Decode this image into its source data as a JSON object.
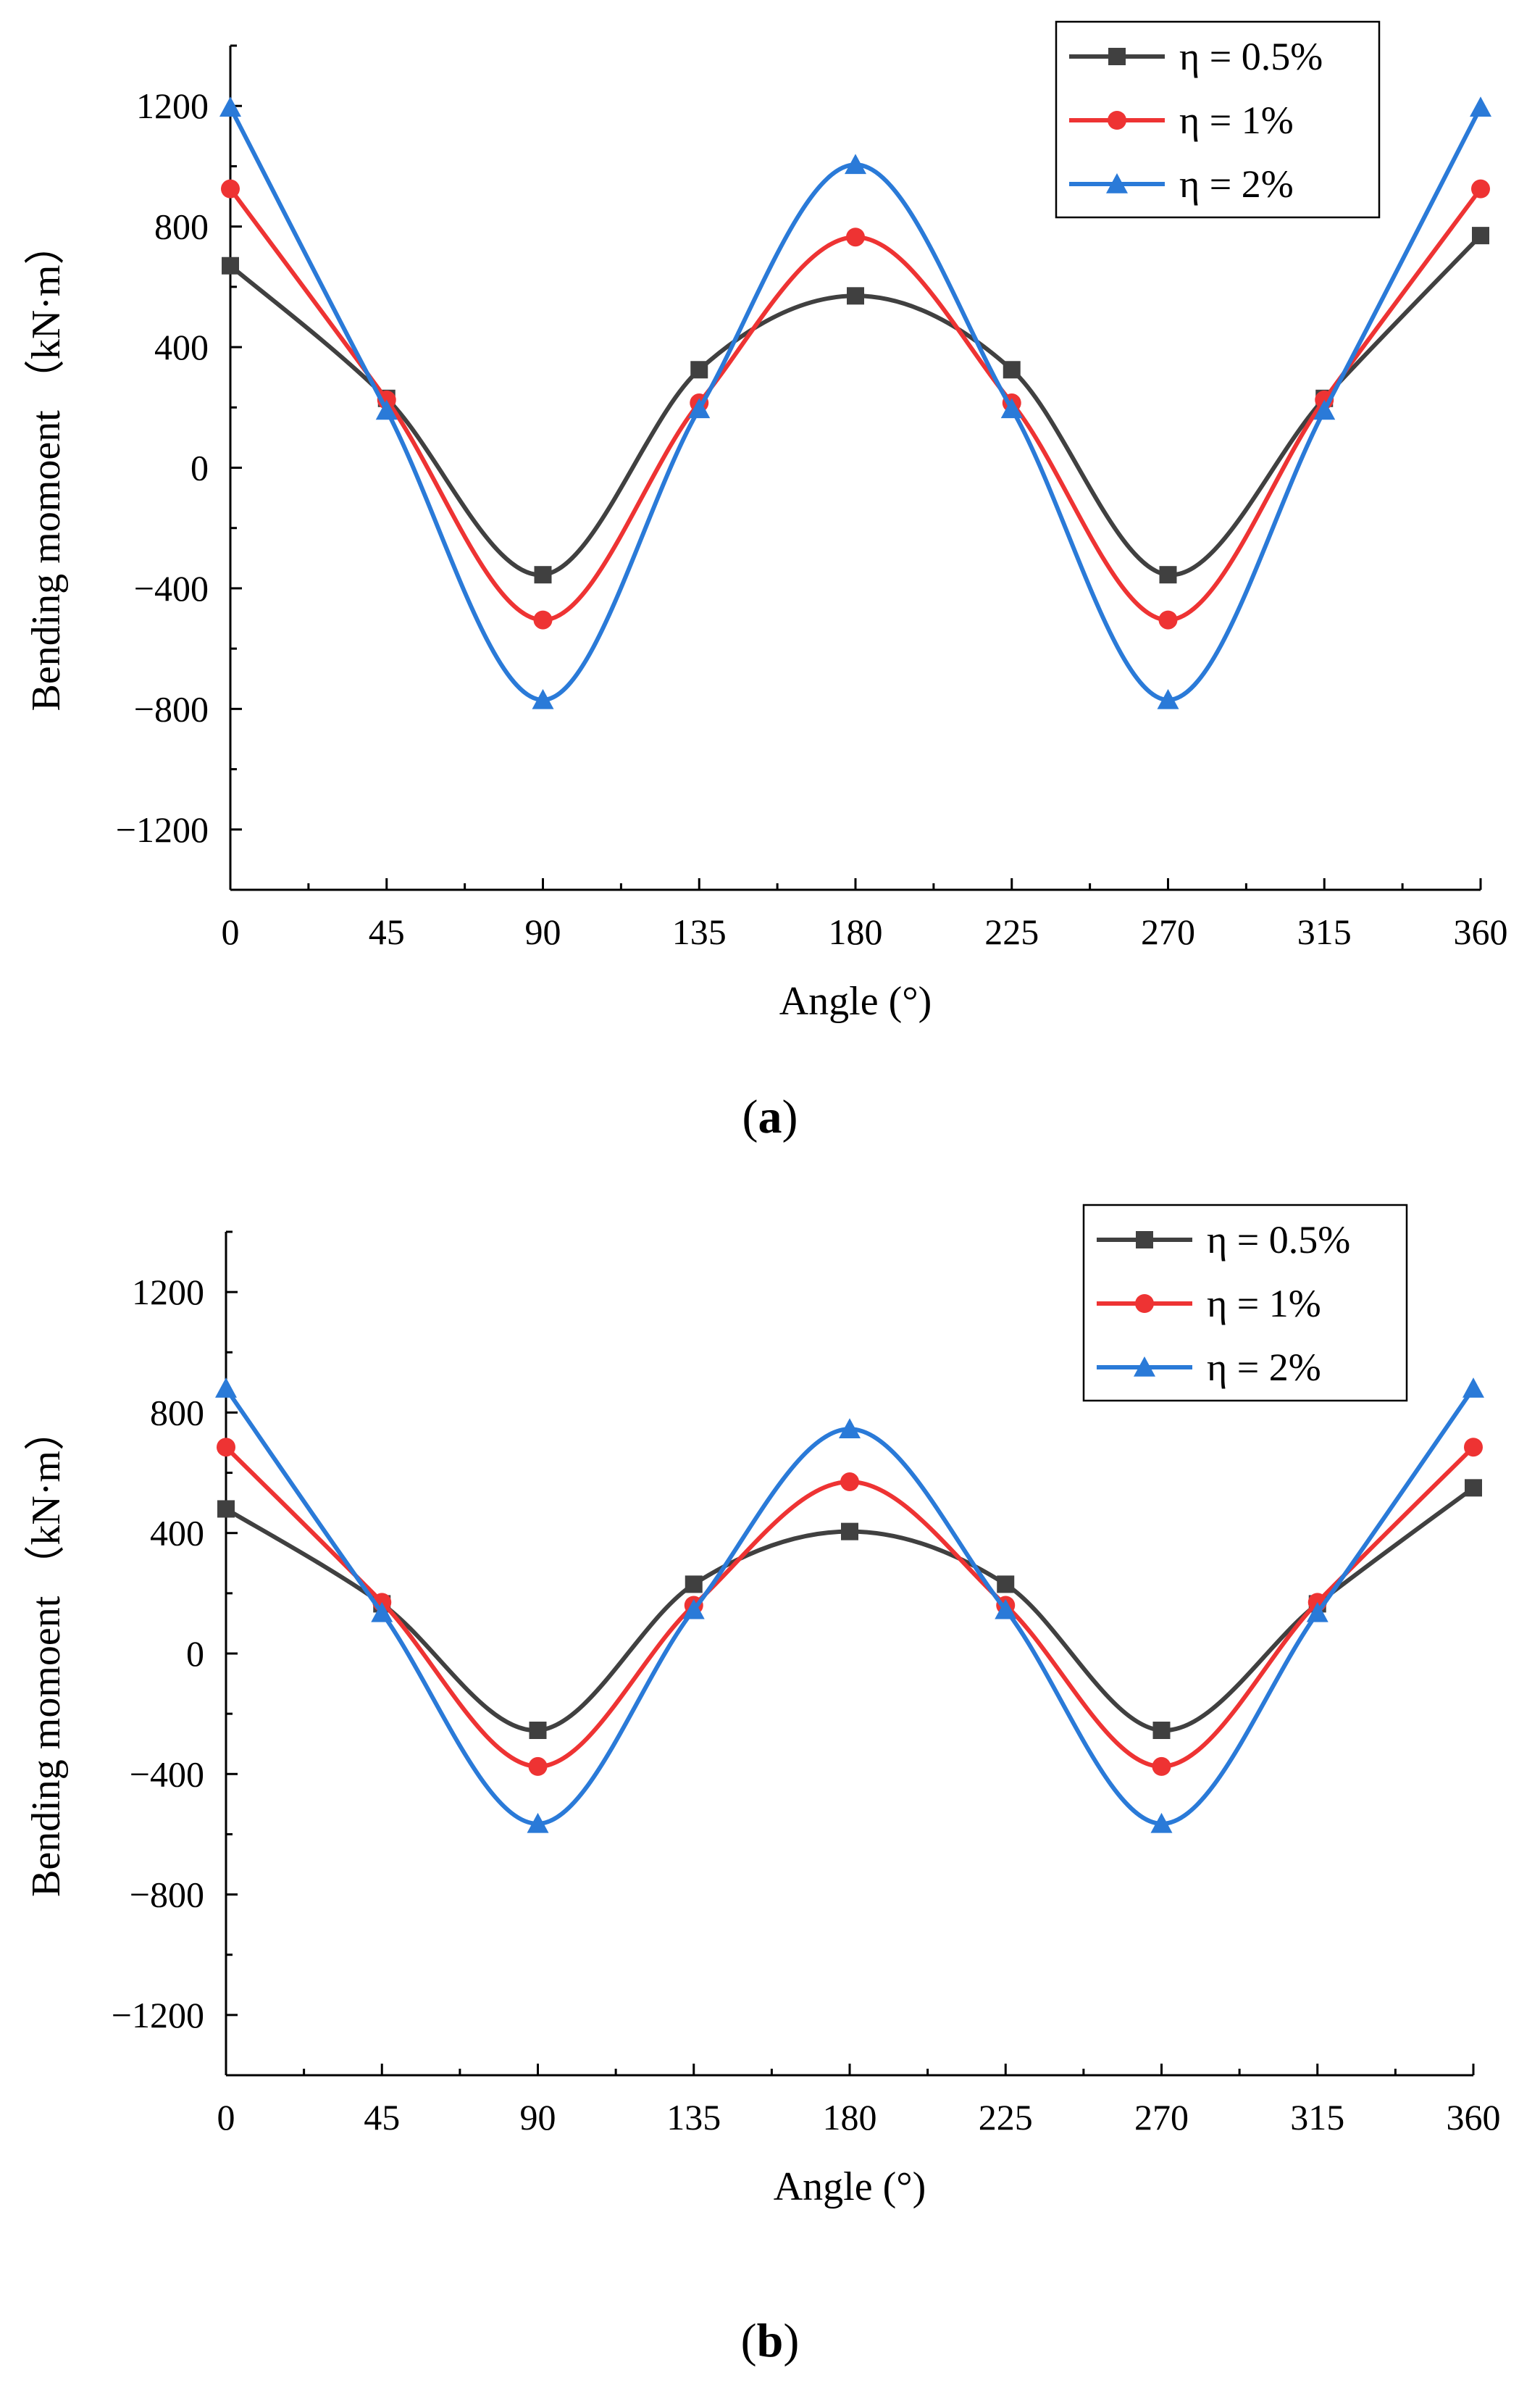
{
  "chart_data": [
    {
      "type": "line",
      "panel": "a",
      "caption_open": "(",
      "caption_letter": "a",
      "caption_close": ")",
      "title": "",
      "xlabel": "Angle (°)",
      "ylabel": "Bending momoent （kN·m）",
      "xlim": [
        0,
        360
      ],
      "ylim": [
        -1400,
        1400
      ],
      "xticks": [
        0,
        45,
        90,
        135,
        180,
        225,
        270,
        315,
        360
      ],
      "yticks": [
        -1200,
        -800,
        -400,
        0,
        400,
        800,
        1200
      ],
      "ytick_labels": [
        "−1200",
        "−800",
        "−400",
        "0",
        "400",
        "800",
        "1200"
      ],
      "grid": false,
      "legend_position": "top-right",
      "series": [
        {
          "name": "η = 0.5%",
          "color": "#404040",
          "marker": "square",
          "x": [
            0,
            45,
            90,
            135,
            180,
            225,
            270,
            315,
            360
          ],
          "values": [
            670,
            230,
            -355,
            325,
            570,
            325,
            -355,
            230,
            770
          ]
        },
        {
          "name": "η = 1%",
          "color": "#ee3333",
          "marker": "circle",
          "x": [
            0,
            45,
            90,
            135,
            180,
            225,
            270,
            315,
            360
          ],
          "values": [
            925,
            225,
            -505,
            215,
            765,
            215,
            -505,
            225,
            925
          ]
        },
        {
          "name": "η = 2%",
          "color": "#2a7ad8",
          "marker": "triangle",
          "x": [
            0,
            45,
            90,
            135,
            180,
            225,
            270,
            315,
            360
          ],
          "values": [
            1195,
            190,
            -770,
            195,
            1005,
            195,
            -770,
            190,
            1195
          ]
        }
      ]
    },
    {
      "type": "line",
      "panel": "b",
      "caption_open": "(",
      "caption_letter": "b",
      "caption_close": ")",
      "title": "",
      "xlabel": "Angle (°)",
      "ylabel": "Bending momoent （kN·m）",
      "xlim": [
        0,
        360
      ],
      "ylim": [
        -1400,
        1400
      ],
      "xticks": [
        0,
        45,
        90,
        135,
        180,
        225,
        270,
        315,
        360
      ],
      "yticks": [
        -1200,
        -800,
        -400,
        0,
        400,
        800,
        1200
      ],
      "ytick_labels": [
        "−1200",
        "−800",
        "−400",
        "0",
        "400",
        "800",
        "1200"
      ],
      "grid": false,
      "legend_position": "top-right",
      "series": [
        {
          "name": "η = 0.5%",
          "color": "#404040",
          "marker": "square",
          "x": [
            0,
            45,
            90,
            135,
            180,
            225,
            270,
            315,
            360
          ],
          "values": [
            480,
            165,
            -255,
            230,
            405,
            230,
            -255,
            165,
            550
          ]
        },
        {
          "name": "η = 1%",
          "color": "#ee3333",
          "marker": "circle",
          "x": [
            0,
            45,
            90,
            135,
            180,
            225,
            270,
            315,
            360
          ],
          "values": [
            685,
            170,
            -375,
            160,
            570,
            160,
            -375,
            170,
            685
          ]
        },
        {
          "name": "η = 2%",
          "color": "#2a7ad8",
          "marker": "triangle",
          "x": [
            0,
            45,
            90,
            135,
            180,
            225,
            270,
            315,
            360
          ],
          "values": [
            880,
            135,
            -565,
            145,
            745,
            145,
            -565,
            135,
            880
          ]
        }
      ]
    }
  ]
}
